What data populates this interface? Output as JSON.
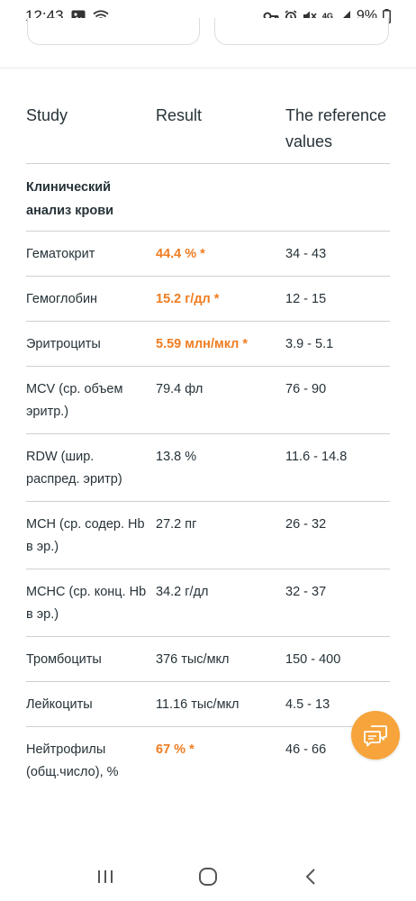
{
  "status_bar": {
    "time": "12:43",
    "battery": "9%",
    "left_icons": [
      "image-icon",
      "wifi-icon"
    ],
    "right_icons": [
      "key-icon",
      "alarm-icon",
      "mute-icon",
      "4g-lte-icon",
      "signal-icon",
      "battery-icon"
    ],
    "network_label": "4G"
  },
  "table": {
    "headers": {
      "study": "Study",
      "result": "Result",
      "reference_line1": "The reference",
      "reference_line2": "values"
    },
    "section": {
      "line1": "Клинический",
      "line2": "анализ крови"
    },
    "rows": [
      {
        "study_1": "Гематокрит",
        "study_2": "",
        "result": "44.4 % *",
        "reference": "34 - 43",
        "flagged": true
      },
      {
        "study_1": "Гемоглобин",
        "study_2": "",
        "result": "15.2 г/дл *",
        "reference": "12 - 15",
        "flagged": true
      },
      {
        "study_1": "Эритроциты",
        "study_2": "",
        "result": "5.59 млн/мкл *",
        "reference": "3.9 - 5.1",
        "flagged": true
      },
      {
        "study_1": "MCV (ср. объем",
        "study_2": "эритр.)",
        "result": "79.4 фл",
        "reference": "76 - 90",
        "flagged": false
      },
      {
        "study_1": "RDW (шир.",
        "study_2": "распред. эритр)",
        "result": "13.8 %",
        "reference": "11.6 - 14.8",
        "flagged": false
      },
      {
        "study_1": "MCH (ср. содер. Hb",
        "study_2": "в эр.)",
        "result": "27.2 пг",
        "reference": "26 - 32",
        "flagged": false
      },
      {
        "study_1": "MCHC (ср. конц. Hb",
        "study_2": "в эр.)",
        "result": "34.2 г/дл",
        "reference": "32 - 37",
        "flagged": false
      },
      {
        "study_1": "Тромбоциты",
        "study_2": "",
        "result": "376 тыс/мкл",
        "reference": "150 - 400",
        "flagged": false
      },
      {
        "study_1": "Лейкоциты",
        "study_2": "",
        "result": "11.16 тыс/мкл",
        "reference": "4.5 - 13",
        "flagged": false
      },
      {
        "study_1": "Нейтрофилы",
        "study_2": "(общ.число), %",
        "result": "67 % *",
        "reference": "46 - 66",
        "flagged": true
      }
    ]
  },
  "colors": {
    "accent": "#ef7d22",
    "fab": "#f6a43b",
    "text": "#263238",
    "divider": "#cfcfcf"
  },
  "fab": {
    "icon": "chat-icon"
  },
  "nav_bar": {
    "icons": [
      "recent-apps-icon",
      "home-icon",
      "back-icon"
    ]
  }
}
